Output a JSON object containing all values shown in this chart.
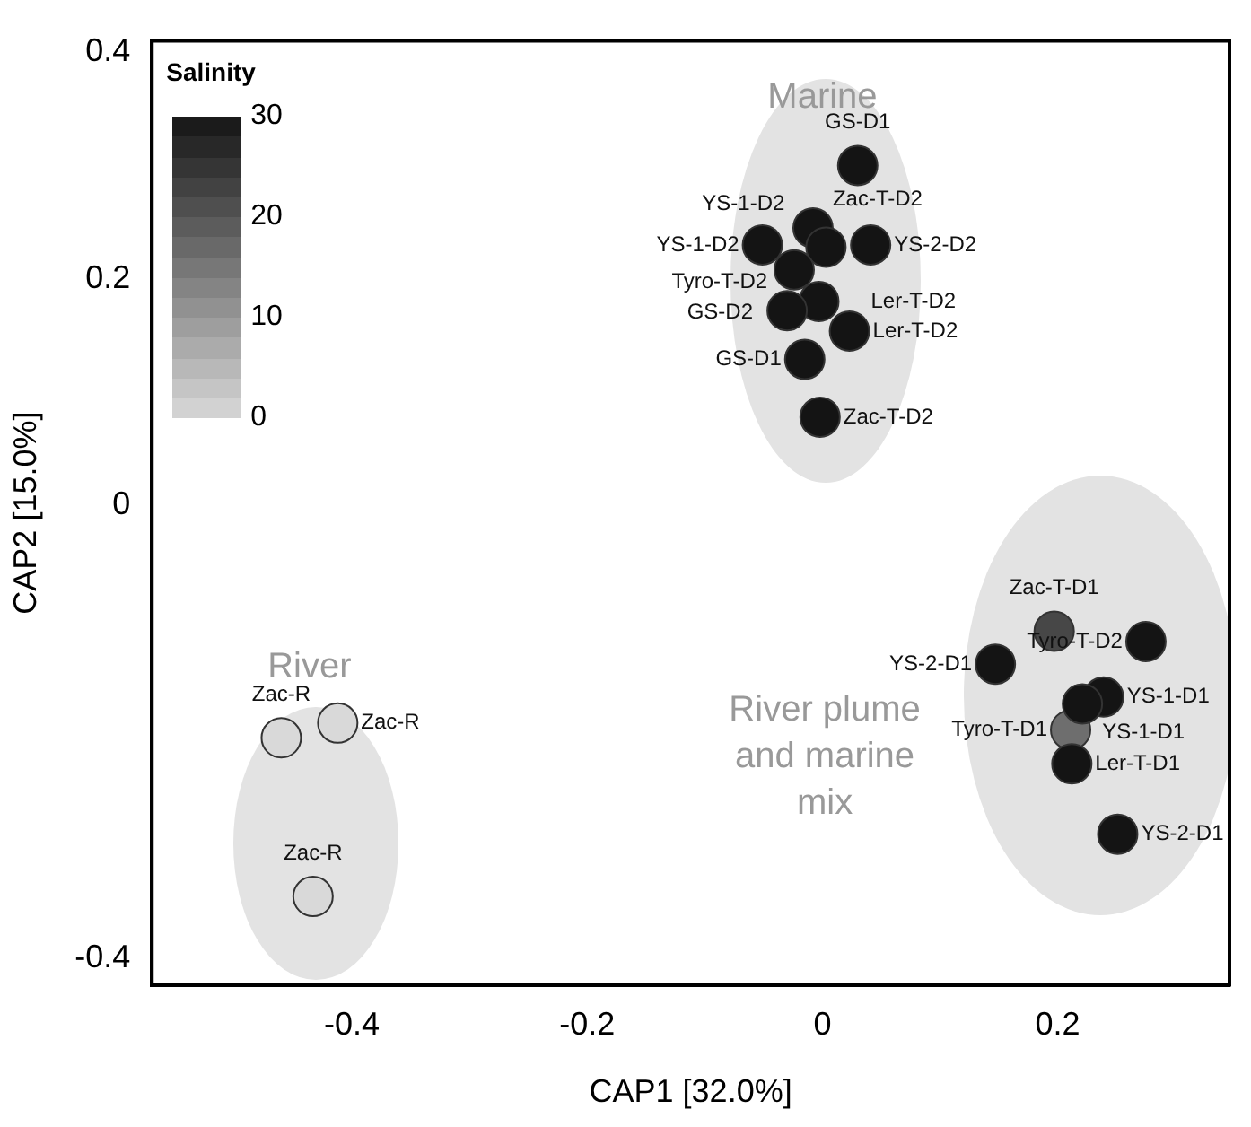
{
  "chart_data": {
    "type": "scatter",
    "xlabel": "CAP1 [32.0%]",
    "ylabel": "CAP2 [15.0%]",
    "clabel": "Salinity",
    "xlim": [
      -0.57,
      0.346
    ],
    "xticks": [
      -0.4,
      -0.2,
      0,
      0.2
    ],
    "ylim": [
      -0.423,
      0.41
    ],
    "yticks": [
      0.4,
      0.2,
      0,
      -0.4
    ],
    "grid": false,
    "legend": false,
    "marker": "circle",
    "x": [
      0.03,
      -0.008,
      -0.051,
      0.003,
      0.041,
      -0.024,
      -0.003,
      -0.03,
      0.023,
      -0.015,
      -0.002,
      0.197,
      0.275,
      0.147,
      0.239,
      0.211,
      0.212,
      0.251,
      -0.46,
      -0.412,
      -0.433,
      0.221
    ],
    "values": [
      0.3,
      0.245,
      0.23,
      0.228,
      0.23,
      0.208,
      0.18,
      0.172,
      0.154,
      0.129,
      0.078,
      -0.111,
      -0.12,
      -0.14,
      -0.169,
      -0.198,
      -0.228,
      -0.29,
      -0.205,
      -0.192,
      -0.345,
      -0.175
    ],
    "colors": [
      "#141414",
      "#141414",
      "#141414",
      "#141414",
      "#141414",
      "#141414",
      "#141414",
      "#141414",
      "#141414",
      "#141414",
      "#141414",
      "#474747",
      "#141414",
      "#141414",
      "#141414",
      "#6e6e6e",
      "#141414",
      "#141414",
      "#d9d9d9",
      "#d9d9d9",
      "#d9d9d9",
      "#141414"
    ],
    "annotations": [
      "Marine",
      "River",
      "River plume and marine mix",
      {
        "text": "GS-D1",
        "x": 0.03,
        "y": 0.3
      },
      {
        "text": "Zac-T-D2",
        "x": -0.008,
        "y": 0.245
      },
      {
        "text": "YS-1-D2",
        "x": -0.051,
        "y": 0.23
      },
      {
        "text": "YS-1-D2",
        "x": 0.003,
        "y": 0.228
      },
      {
        "text": "YS-2-D2",
        "x": 0.041,
        "y": 0.23
      },
      {
        "text": "GS-D2",
        "x": -0.024,
        "y": 0.208
      },
      {
        "text": "Ler-T-D2",
        "x": -0.003,
        "y": 0.18
      },
      {
        "text": "Tyro-T-D2",
        "x": -0.03,
        "y": 0.172
      },
      {
        "text": "Ler-T-D2",
        "x": 0.023,
        "y": 0.154
      },
      {
        "text": "GS-D1",
        "x": -0.015,
        "y": 0.129
      },
      {
        "text": "Zac-T-D2",
        "x": -0.002,
        "y": 0.078
      },
      {
        "text": "Zac-T-D1",
        "x": 0.197,
        "y": -0.111
      },
      {
        "text": "Tyro-T-D2",
        "x": 0.275,
        "y": -0.12
      },
      {
        "text": "YS-2-D1",
        "x": 0.147,
        "y": -0.14
      },
      {
        "text": "YS-1-D1",
        "x": 0.239,
        "y": -0.169
      },
      {
        "text": "Tyro-T-D1",
        "x": 0.211,
        "y": -0.198
      },
      {
        "text": "Ler-T-D1",
        "x": 0.212,
        "y": -0.228
      },
      {
        "text": "YS-2-D1",
        "x": 0.251,
        "y": -0.29
      },
      {
        "text": "Zac-R",
        "x": -0.46,
        "y": -0.205
      },
      {
        "text": "Zac-R",
        "x": -0.412,
        "y": -0.192
      },
      {
        "text": "Zac-R",
        "x": -0.433,
        "y": -0.345
      },
      {
        "text": "YS-1-D1",
        "x": 0.221,
        "y": -0.175
      },
      "30",
      "20",
      "10",
      "0"
    ]
  }
}
